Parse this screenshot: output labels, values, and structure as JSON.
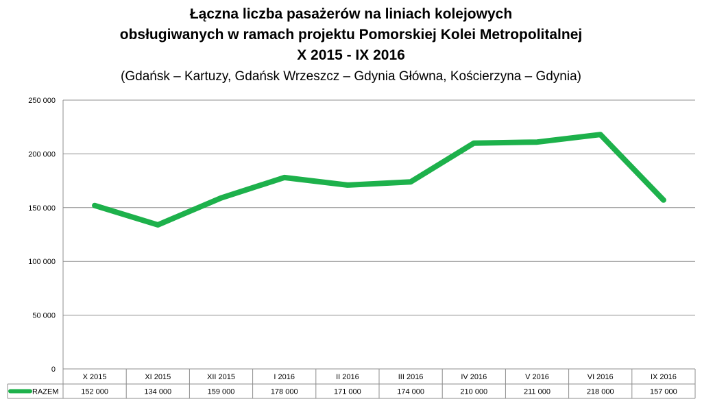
{
  "chart_data": {
    "type": "line",
    "title_lines": [
      "Łączna liczba pasażerów na liniach kolejowych",
      "obsługiwanych w ramach projektu Pomorskiej Kolei Metropolitalnej",
      "X 2015 - IX 2016"
    ],
    "subtitle": "(Gdańsk – Kartuzy, Gdańsk Wrzeszcz – Gdynia Główna, Kościerzyna – Gdynia)",
    "categories": [
      "X 2015",
      "XI 2015",
      "XII 2015",
      "I 2016",
      "II 2016",
      "III 2016",
      "IV 2016",
      "V 2016",
      "VI 2016",
      "IX 2016"
    ],
    "series": [
      {
        "name": "RAZEM",
        "color": "#1db14b",
        "values": [
          152000,
          134000,
          159000,
          178000,
          171000,
          174000,
          210000,
          211000,
          218000,
          157000
        ],
        "value_labels": [
          "152 000",
          "134 000",
          "159 000",
          "178 000",
          "171 000",
          "174 000",
          "210 000",
          "211 000",
          "218 000",
          "157 000"
        ]
      }
    ],
    "ylim": [
      0,
      250000
    ],
    "yticks": [
      0,
      50000,
      100000,
      150000,
      200000,
      250000
    ],
    "ytick_labels": [
      "0",
      "50 000",
      "100 000",
      "150 000",
      "200 000",
      "250 000"
    ],
    "grid": true,
    "legend": "data-table"
  }
}
